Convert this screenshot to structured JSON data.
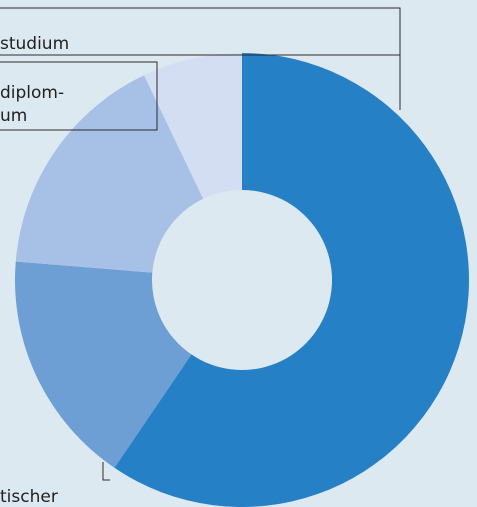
{
  "chart_data": {
    "type": "pie",
    "subtype": "donut",
    "values": [
      59.5,
      16.8,
      16.6,
      7.1
    ],
    "colors": [
      "#2680c6",
      "#6d9fd5",
      "#a6c0e6",
      "#d4def2"
    ],
    "label_fragments": {
      "bachelor": "studium",
      "diplom_line1": "diplom-",
      "diplom_line2": "um",
      "praktischer": "tischer"
    }
  },
  "colors": {
    "background": "#dde9f1",
    "leader_line": "#2b2b2b"
  }
}
